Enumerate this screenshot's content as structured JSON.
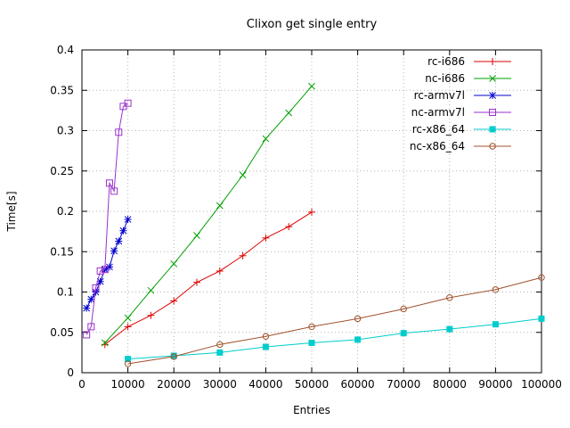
{
  "chart_data": {
    "type": "line",
    "title": "Clixon get single entry",
    "xlabel": "Entries",
    "ylabel": "Time[s]",
    "xlim": [
      0,
      100000
    ],
    "ylim": [
      0,
      0.4
    ],
    "xticks": [
      0,
      10000,
      20000,
      30000,
      40000,
      50000,
      60000,
      70000,
      80000,
      90000,
      100000
    ],
    "yticks": [
      0,
      0.05,
      0.1,
      0.15,
      0.2,
      0.25,
      0.3,
      0.35,
      0.4
    ],
    "grid": true,
    "legend_position": "top-right-inside",
    "series": [
      {
        "name": "rc-i686",
        "color": "#dd0000",
        "marker": "plus",
        "x": [
          5000,
          10000,
          15000,
          20000,
          25000,
          30000,
          35000,
          40000,
          45000,
          50000
        ],
        "y": [
          0.035,
          0.057,
          0.071,
          0.089,
          0.112,
          0.126,
          0.145,
          0.167,
          0.181,
          0.199
        ]
      },
      {
        "name": "nc-i686",
        "color": "#00a000",
        "marker": "cross",
        "x": [
          5000,
          10000,
          15000,
          20000,
          25000,
          30000,
          35000,
          40000,
          45000,
          50000
        ],
        "y": [
          0.037,
          0.068,
          0.102,
          0.135,
          0.17,
          0.207,
          0.245,
          0.29,
          0.322,
          0.355
        ]
      },
      {
        "name": "rc-armv7l",
        "color": "#0000cc",
        "marker": "asterisk",
        "x": [
          1000,
          2000,
          3000,
          4000,
          5000,
          6000,
          7000,
          8000,
          9000,
          10000
        ],
        "y": [
          0.08,
          0.091,
          0.1,
          0.113,
          0.128,
          0.131,
          0.151,
          0.163,
          0.176,
          0.19
        ]
      },
      {
        "name": "nc-armv7l",
        "color": "#9a32cd",
        "marker": "square-open",
        "x": [
          1000,
          2000,
          3000,
          4000,
          5000,
          6000,
          7000,
          8000,
          9000,
          10000
        ],
        "y": [
          0.047,
          0.057,
          0.105,
          0.126,
          0.128,
          0.235,
          0.225,
          0.298,
          0.33,
          0.334
        ]
      },
      {
        "name": "rc-x86_64",
        "color": "#00cccc",
        "marker": "square-filled",
        "x": [
          10000,
          20000,
          30000,
          40000,
          50000,
          60000,
          70000,
          80000,
          90000,
          100000
        ],
        "y": [
          0.017,
          0.021,
          0.025,
          0.032,
          0.037,
          0.041,
          0.049,
          0.054,
          0.06,
          0.067
        ]
      },
      {
        "name": "nc-x86_64",
        "color": "#a0522d",
        "marker": "circle-open",
        "x": [
          10000,
          20000,
          30000,
          40000,
          50000,
          60000,
          70000,
          80000,
          90000,
          100000
        ],
        "y": [
          0.011,
          0.02,
          0.035,
          0.045,
          0.057,
          0.067,
          0.079,
          0.093,
          0.103,
          0.118
        ]
      }
    ]
  }
}
